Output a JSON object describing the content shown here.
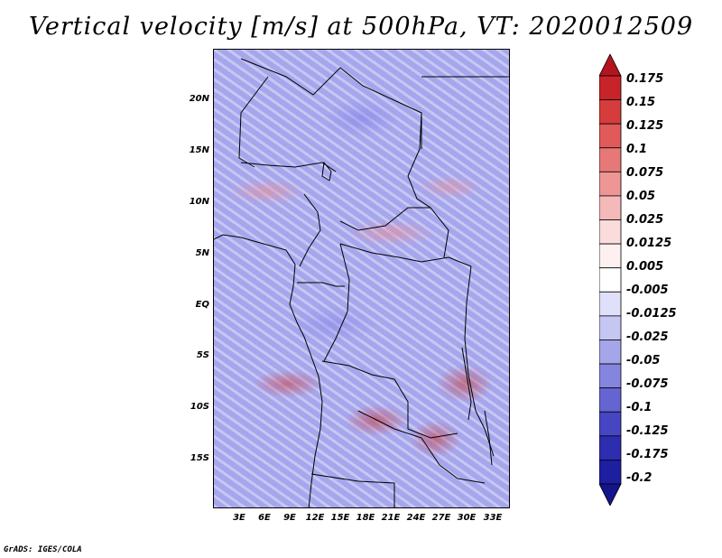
{
  "title": "Vertical velocity [m/s] at 500hPa, VT: 2020012509",
  "credit": "GrADS: IGES/COLA",
  "map": {
    "lat_labels": [
      "20N",
      "15N",
      "10N",
      "5N",
      "EQ",
      "5S",
      "10S",
      "15S"
    ],
    "lon_labels": [
      "3E",
      "6E",
      "9E",
      "12E",
      "15E",
      "18E",
      "21E",
      "24E",
      "27E",
      "30E",
      "33E"
    ]
  },
  "colorbar": {
    "labels": [
      "0.175",
      "0.15",
      "0.125",
      "0.1",
      "0.075",
      "0.05",
      "0.025",
      "0.0125",
      "0.005",
      "-0.005",
      "-0.0125",
      "-0.025",
      "-0.05",
      "-0.075",
      "-0.1",
      "-0.125",
      "-0.175",
      "-0.2"
    ],
    "colors": [
      "#b4141e",
      "#c82328",
      "#d73c3c",
      "#e15a5a",
      "#e67878",
      "#ee9696",
      "#f5b9b9",
      "#fadcdc",
      "#fdf0f0",
      "#ffffff",
      "#e0e0fa",
      "#c6c6f2",
      "#a5a5ea",
      "#8585e0",
      "#6464d2",
      "#4646c3",
      "#2d2db0",
      "#1e1ea0",
      "#14148c"
    ]
  }
}
